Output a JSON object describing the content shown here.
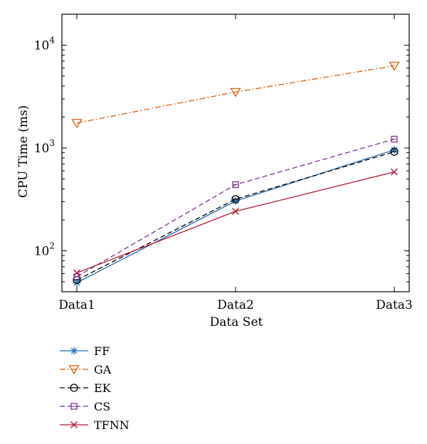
{
  "chart_data": {
    "type": "line",
    "xlabel": "Data Set",
    "ylabel": "CPU Time (ms)",
    "yscale": "log",
    "ylim": [
      40,
      20000
    ],
    "grid": false,
    "legend_position": "below",
    "categories": [
      "Data1",
      "Data2",
      "Data3"
    ],
    "y_tick_labels": [
      {
        "value": 100,
        "base": "10",
        "exp": "2"
      },
      {
        "value": 1000,
        "base": "10",
        "exp": "3"
      },
      {
        "value": 10000,
        "base": "10",
        "exp": "4"
      }
    ],
    "series": [
      {
        "name": "FF",
        "values": [
          49,
          305,
          960
        ],
        "color": "#1f6fb4",
        "marker": "asterisk",
        "dash": "solid"
      },
      {
        "name": "GA",
        "values": [
          1750,
          3500,
          6300
        ],
        "color": "#d95f0e",
        "marker": "triangle-down",
        "dash": "dashdot"
      },
      {
        "name": "EK",
        "values": [
          52,
          318,
          920
        ],
        "color": "#000000",
        "marker": "circle",
        "dash": "dashed"
      },
      {
        "name": "CS",
        "values": [
          56,
          440,
          1220
        ],
        "color": "#7b3294",
        "marker": "square",
        "dash": "dashed"
      },
      {
        "name": "TFNN",
        "values": [
          61,
          242,
          585
        ],
        "color": "#b2182b",
        "marker": "x",
        "dash": "solid"
      }
    ]
  }
}
